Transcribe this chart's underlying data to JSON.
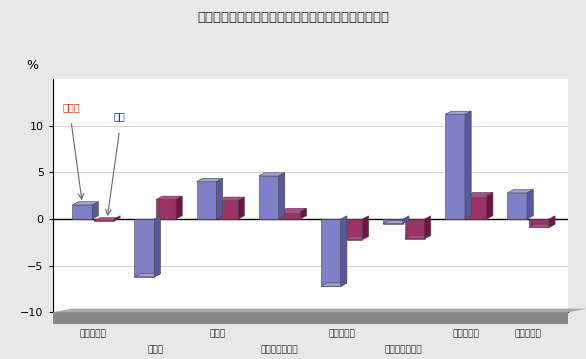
{
  "title": "図１３　産業別現金給与総額の前年比（３０人以上）",
  "categories_all": [
    "調査産業計",
    "建設業",
    "製造業",
    "電気ガス水道業",
    "運輸通信業",
    "卧小売業飲食店",
    "金融保険業",
    "サービス業"
  ],
  "tottori": [
    1.5,
    -6.2,
    4.0,
    4.6,
    -7.2,
    -0.5,
    11.2,
    2.8
  ],
  "national": [
    -0.2,
    2.1,
    2.0,
    0.8,
    -2.2,
    -2.1,
    2.5,
    -0.9
  ],
  "color_tottori_front": "#8080c8",
  "color_tottori_top": "#a0a0e0",
  "color_tottori_side": "#5858a0",
  "color_national_front": "#993366",
  "color_national_top": "#bb4488",
  "color_national_side": "#771144",
  "ylabel": "%",
  "ylim": [
    -10,
    15
  ],
  "yticks": [
    -10,
    -5,
    0,
    5,
    10
  ],
  "bg_color": "#e8e8e8",
  "plot_bg": "#ffffff",
  "legend_tottori": "鴥取県",
  "legend_national": "全国",
  "row1_indices": [
    0,
    2,
    4,
    6,
    7
  ],
  "row2_indices": [
    1,
    3,
    5
  ]
}
